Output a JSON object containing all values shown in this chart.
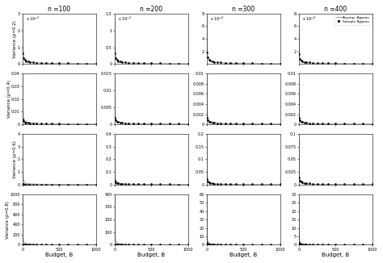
{
  "col_titles": [
    "n =100",
    "n =200",
    "n =300",
    "n =400"
  ],
  "row_labels": [
    "Variance (ρ=0.2)",
    "Variance (ρ=0.4)",
    "Variance (ρ=0.6)",
    "Variance (ρ=0.8)"
  ],
  "xlabel": "Budget, B",
  "legend_labels": [
    "Asymp. Approx.",
    "Sample Approx."
  ],
  "background": "#ffffff",
  "line_color": "#999999",
  "dot_color": "#000000",
  "subplot_params": {
    "0,0": {
      "ymax": 0.003,
      "yticks": [
        0,
        0.001,
        0.002,
        0.003
      ],
      "sci_exp": -3,
      "asym_c": 0.0028,
      "samp_c": 0.0016,
      "alpha": 0.7,
      "beta": 0.55
    },
    "0,1": {
      "ymax": 0.0015,
      "yticks": [
        0,
        0.0005,
        0.001,
        0.0015
      ],
      "sci_exp": -3,
      "asym_c": 0.00135,
      "samp_c": 0.0008,
      "alpha": 0.7,
      "beta": 0.55
    },
    "0,2": {
      "ymax": 0.0008,
      "yticks": [
        0.0002,
        0.0004,
        0.0006,
        0.0008
      ],
      "sci_exp": -4,
      "asym_c": 0.00075,
      "samp_c": 0.00045,
      "alpha": 0.7,
      "beta": 0.55
    },
    "0,3": {
      "ymax": 0.0008,
      "yticks": [
        0.0002,
        0.0004,
        0.0006,
        0.0008
      ],
      "sci_exp": -4,
      "asym_c": 0.00058,
      "samp_c": 0.00038,
      "alpha": 0.7,
      "beta": 0.55
    },
    "1,0": {
      "ymax": 0.04,
      "yticks": [
        0,
        0.01,
        0.02,
        0.03,
        0.04
      ],
      "sci_exp": 0,
      "asym_c": 0.038,
      "samp_c": 0.009,
      "alpha": 0.75,
      "beta": 0.5
    },
    "1,1": {
      "ymax": 0.015,
      "yticks": [
        0,
        0.005,
        0.01,
        0.015
      ],
      "sci_exp": 0,
      "asym_c": 0.014,
      "samp_c": 0.0045,
      "alpha": 0.75,
      "beta": 0.5
    },
    "1,2": {
      "ymax": 0.01,
      "yticks": [
        0,
        0.002,
        0.004,
        0.006,
        0.008,
        0.01
      ],
      "sci_exp": 0,
      "asym_c": 0.0095,
      "samp_c": 0.003,
      "alpha": 0.75,
      "beta": 0.5
    },
    "1,3": {
      "ymax": 0.01,
      "yticks": [
        0,
        0.002,
        0.004,
        0.006,
        0.008,
        0.01
      ],
      "sci_exp": 0,
      "asym_c": 0.007,
      "samp_c": 0.003,
      "alpha": 0.75,
      "beta": 0.5
    },
    "2,0": {
      "ymax": 4,
      "yticks": [
        0,
        1,
        2,
        3,
        4
      ],
      "sci_exp": 0,
      "asym_c": 3.8,
      "samp_c": 0.1,
      "alpha": 0.92,
      "beta": 0.55
    },
    "2,1": {
      "ymax": 0.4,
      "yticks": [
        0,
        0.1,
        0.2,
        0.3,
        0.4
      ],
      "sci_exp": 0,
      "asym_c": 0.38,
      "samp_c": 0.075,
      "alpha": 0.92,
      "beta": 0.55
    },
    "2,2": {
      "ymax": 0.2,
      "yticks": [
        0,
        0.05,
        0.1,
        0.15,
        0.2
      ],
      "sci_exp": 0,
      "asym_c": 0.18,
      "samp_c": 0.05,
      "alpha": 0.92,
      "beta": 0.55
    },
    "2,3": {
      "ymax": 0.1,
      "yticks": [
        0,
        0.025,
        0.05,
        0.075,
        0.1
      ],
      "sci_exp": 0,
      "asym_c": 0.09,
      "samp_c": 0.035,
      "alpha": 0.92,
      "beta": 0.55
    },
    "3,0": {
      "ymax": 1000,
      "yticks": [
        0,
        200,
        400,
        600,
        800,
        1000
      ],
      "sci_exp": 0,
      "asym_c": 950,
      "samp_c": 18,
      "alpha": 0.97,
      "beta": 0.55
    },
    "3,1": {
      "ymax": 400,
      "yticks": [
        0,
        100,
        200,
        300,
        400
      ],
      "sci_exp": 0,
      "asym_c": 380,
      "samp_c": 9,
      "alpha": 0.97,
      "beta": 0.55
    },
    "3,2": {
      "ymax": 60,
      "yticks": [
        0,
        10,
        20,
        30,
        40,
        50,
        60
      ],
      "sci_exp": 0,
      "asym_c": 58,
      "samp_c": 5,
      "alpha": 0.97,
      "beta": 0.55
    },
    "3,3": {
      "ymax": 30,
      "yticks": [
        0,
        5,
        10,
        15,
        20,
        25,
        30
      ],
      "sci_exp": 0,
      "asym_c": 28,
      "samp_c": 3,
      "alpha": 0.97,
      "beta": 0.55
    }
  }
}
